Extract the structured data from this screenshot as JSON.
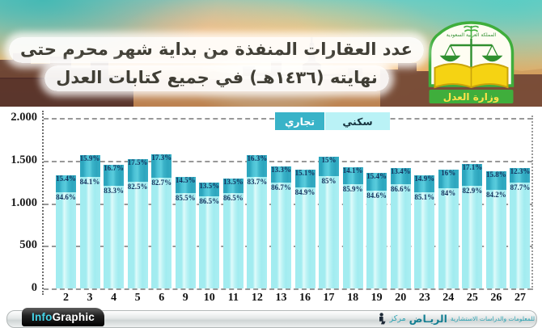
{
  "header": {
    "title_line1": "عدد العقارات المنفذة من بداية شهر محرم حتى",
    "title_line2": "نهايته (١٤٣٦هـ) في جميع كتابات العدل",
    "logo": {
      "arc_text": "المملكة العربية السعودية",
      "banner_text": "وزارة العدل"
    }
  },
  "chart_data": {
    "type": "bar",
    "stacked": true,
    "title": "عدد العقارات المنفذة من بداية شهر محرم حتى نهايته (١٤٣٦هـ) في جميع كتابات العدل",
    "ylim": [
      0,
      2000
    ],
    "grid": "dashed-horizontal",
    "legend_position": "top",
    "y_gridlines": [
      {
        "value": 2000,
        "label": "2.000"
      },
      {
        "value": 1500,
        "label": "1.500"
      },
      {
        "value": 1000,
        "label": "1.000"
      },
      {
        "value": 500,
        "label": "500"
      },
      {
        "value": 0,
        "label": "0"
      }
    ],
    "categories": [
      "2",
      "3",
      "4",
      "5",
      "6",
      "9",
      "10",
      "11",
      "12",
      "13",
      "16",
      "17",
      "18",
      "19",
      "20",
      "23",
      "24",
      "25",
      "26",
      "27"
    ],
    "series": [
      {
        "name": "تجاري",
        "color": "#39b3c8",
        "pct": [
          15.4,
          15.9,
          16.7,
          17.5,
          17.3,
          14.5,
          13.5,
          13.5,
          16.3,
          13.3,
          15.1,
          15,
          14.1,
          15.4,
          13.4,
          14.9,
          16,
          17.1,
          15.8,
          12.3
        ],
        "labels": [
          "15.4%",
          "15.9%",
          "16.7%",
          "17.5%",
          "17.3%",
          "14.5%",
          "13.5%",
          "13.5%",
          "16.3%",
          "13.3%",
          "15.1%",
          "15%",
          "14.1%",
          "15.4%",
          "13.4%",
          "14.9%",
          "16%",
          "17.1%",
          "15.8%",
          "12.3%"
        ]
      },
      {
        "name": "سكني",
        "color": "#a2ecf0",
        "pct": [
          84.6,
          84.1,
          83.3,
          82.5,
          82.7,
          85.5,
          86.5,
          86.5,
          83.7,
          86.7,
          84.9,
          85,
          85.9,
          84.6,
          86.6,
          85.1,
          84,
          82.9,
          84.2,
          87.7
        ],
        "labels": [
          "84.6%",
          "84.1%",
          "83.3%",
          "82.5%",
          "82.7%",
          "85.5%",
          "86.5%",
          "86.5%",
          "83.7%",
          "86.7%",
          "84.9%",
          "85%",
          "85.9%",
          "84.6%",
          "86.6%",
          "85.1%",
          "84%",
          "82.9%",
          "84.2%",
          "87.7%"
        ]
      }
    ],
    "totals_estimated": [
      1330,
      1560,
      1450,
      1520,
      1570,
      1310,
      1245,
      1290,
      1565,
      1430,
      1390,
      1545,
      1425,
      1355,
      1410,
      1325,
      1395,
      1455,
      1375,
      1415
    ]
  },
  "footer": {
    "brand_left": {
      "info": "Info",
      "graphic": "Graphic"
    },
    "brand_right": {
      "word1": "مركز",
      "word2": "الريـاض",
      "tagline": "للمعلومات والدراسات الاستشارية"
    }
  }
}
